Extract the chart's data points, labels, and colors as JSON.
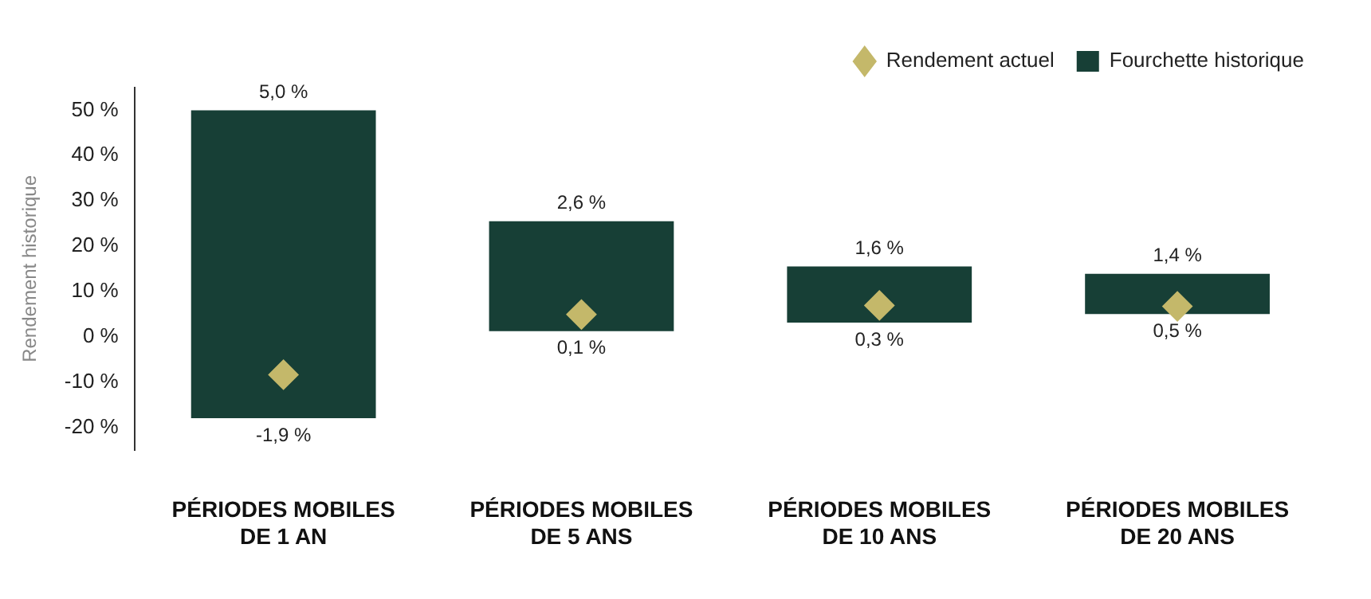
{
  "chart_data": {
    "type": "bar",
    "ylabel": "Rendement historique",
    "categories": [
      "PÉRIODES MOBILES DE 1 AN",
      "PÉRIODES MOBILES DE 5 ANS",
      "PÉRIODES MOBILES DE 10 ANS",
      "PÉRIODES MOBILES DE 20 ANS"
    ],
    "series": [
      {
        "name": "Fourchette historique",
        "color": "#173f36",
        "base": [
          -18,
          1.2,
          3.1,
          5
        ],
        "values": [
          68,
          24.3,
          12.4,
          8.9
        ]
      },
      {
        "name": "Rendement actuel",
        "type": "scatter",
        "color": "#c4b86a",
        "x": [
          "PÉRIODES MOBILES DE 1 AN",
          "PÉRIODES MOBILES DE 5 ANS",
          "PÉRIODES MOBILES DE 10 ANS",
          "PÉRIODES MOBILES DE 20 ANS"
        ],
        "values": [
          -8.4,
          4.9,
          6.9,
          6.7
        ],
        "marker": "diamond"
      }
    ],
    "ylim": [
      -25,
      55
    ],
    "yticks": [
      {
        "value": -20,
        "label": "-20 %"
      },
      {
        "value": -10,
        "label": "-10 %"
      },
      {
        "value": 0,
        "label": "0 %"
      },
      {
        "value": 10,
        "label": "10 %"
      },
      {
        "value": 20,
        "label": "20 %"
      },
      {
        "value": 30,
        "label": "30 %"
      },
      {
        "value": 40,
        "label": "40 %"
      },
      {
        "value": 50,
        "label": "50 %"
      }
    ],
    "grid": false,
    "legend": "top right",
    "annotations": [
      {
        "text": "5,0 %",
        "x": "PÉRIODES MOBILES DE 1 AN",
        "y": 50
      },
      {
        "text": "-1,9 %",
        "x": "PÉRIODES MOBILES DE 1 AN",
        "y": -18
      },
      {
        "text": "2,6 %",
        "x": "PÉRIODES MOBILES DE 5 ANS",
        "y": 25.5
      },
      {
        "text": "0,1 %",
        "x": "PÉRIODES MOBILES DE 5 ANS",
        "y": 1.2
      },
      {
        "text": "1,6 %",
        "x": "PÉRIODES MOBILES DE 10 ANS",
        "y": 15.5
      },
      {
        "text": "0,3 %",
        "x": "PÉRIODES MOBILES DE 10 ANS",
        "y": 3.1
      },
      {
        "text": "1,4 %",
        "x": "PÉRIODES MOBILES DE 20 ANS",
        "y": 13.9
      },
      {
        "text": "0,5 %",
        "x": "PÉRIODES MOBILES DE 20 ANS",
        "y": 5
      }
    ]
  }
}
